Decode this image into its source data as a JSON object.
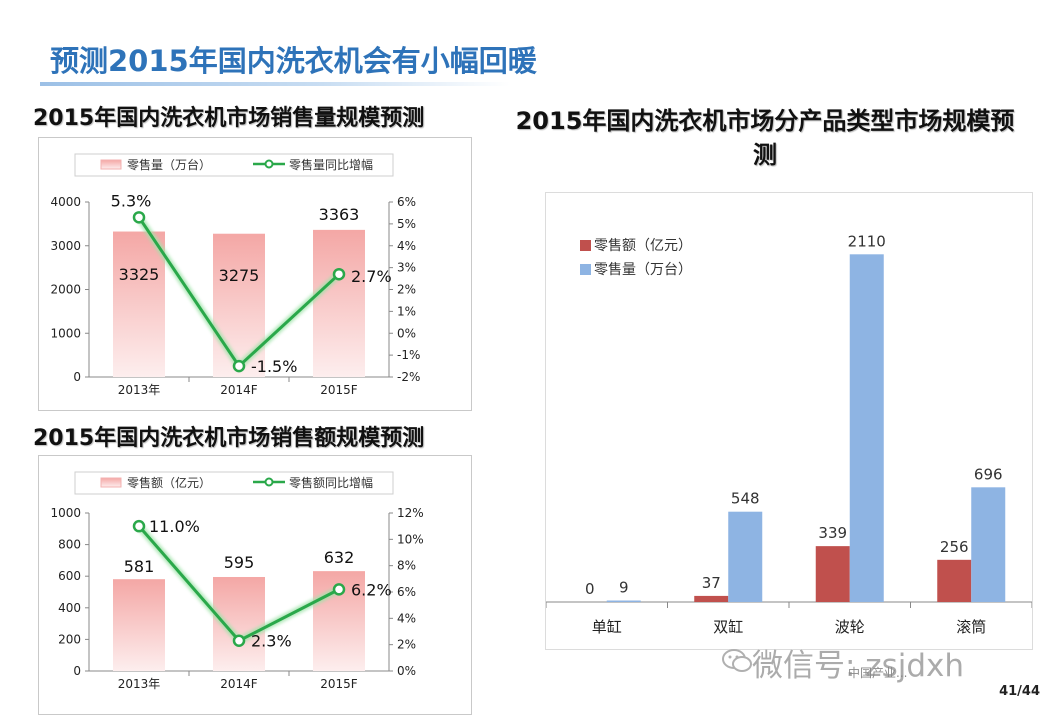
{
  "page": {
    "title": "预测2015年国内洗衣机会有小幅回暖",
    "page_number": "41/44",
    "watermark": "微信号: zsjdxh",
    "source_note": "中国产业..."
  },
  "colors": {
    "title_blue": "#2e73b9",
    "bar_pink": "#f7b8b6",
    "line_green": "#2aa84a",
    "bar_red": "#c0504d",
    "bar_blue": "#8eb4e3"
  },
  "chart_data": [
    {
      "id": "c1",
      "type": "bar",
      "title": "2015年国内洗衣机市场销售量规模预测",
      "categories": [
        "2013年",
        "2014F",
        "2015F"
      ],
      "series": [
        {
          "name": "零售量（万台）",
          "type": "bar",
          "axis": "left",
          "values": [
            3325,
            3275,
            3363
          ],
          "labels": [
            "3325",
            "3275",
            "3363"
          ]
        },
        {
          "name": "零售量同比增幅",
          "type": "line",
          "axis": "right",
          "values": [
            5.3,
            -1.5,
            2.7
          ],
          "labels": [
            "5.3%",
            "-1.5%",
            "2.7%"
          ]
        }
      ],
      "ylim": [
        0,
        4000
      ],
      "yticks": [
        "0",
        "1000",
        "2000",
        "3000",
        "4000"
      ],
      "y2lim": [
        -2,
        6
      ],
      "y2ticks": [
        "-2%",
        "-1%",
        "0%",
        "1%",
        "2%",
        "3%",
        "4%",
        "5%",
        "6%"
      ],
      "legend": "top"
    },
    {
      "id": "c2",
      "type": "bar",
      "title": "2015年国内洗衣机市场销售额规模预测",
      "categories": [
        "2013年",
        "2014F",
        "2015F"
      ],
      "series": [
        {
          "name": "零售额（亿元）",
          "type": "bar",
          "axis": "left",
          "values": [
            581,
            595,
            632
          ],
          "labels": [
            "581",
            "595",
            "632"
          ]
        },
        {
          "name": "零售额同比增幅",
          "type": "line",
          "axis": "right",
          "values": [
            11.0,
            2.3,
            6.2
          ],
          "labels": [
            "11.0%",
            "2.3%",
            "6.2%"
          ]
        }
      ],
      "ylim": [
        0,
        1000
      ],
      "yticks": [
        "0",
        "200",
        "400",
        "600",
        "800",
        "1000"
      ],
      "y2lim": [
        0,
        12
      ],
      "y2ticks": [
        "0%",
        "2%",
        "4%",
        "6%",
        "8%",
        "10%",
        "12%"
      ],
      "legend": "top"
    },
    {
      "id": "c3",
      "type": "bar",
      "title": "2015年国内洗衣机市场分产品类型市场规模预测",
      "categories": [
        "单缸",
        "双缸",
        "波轮",
        "滚筒"
      ],
      "series": [
        {
          "name": "零售额（亿元）",
          "values": [
            0,
            37,
            339,
            256
          ],
          "labels": [
            "0",
            "37",
            "339",
            "256"
          ]
        },
        {
          "name": "零售量（万台）",
          "values": [
            9,
            548,
            2110,
            696
          ],
          "labels": [
            "9",
            "548",
            "2110",
            "696"
          ]
        }
      ],
      "ylim": [
        0,
        2300
      ],
      "legend": "top-left"
    }
  ]
}
